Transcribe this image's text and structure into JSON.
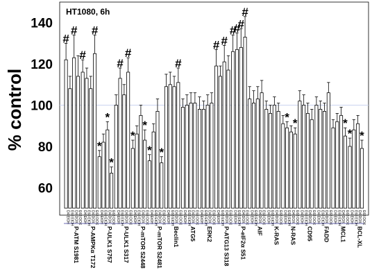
{
  "chart_data": {
    "type": "bar",
    "title": "",
    "annotation": "HT1080, 6h",
    "ylabel": "% control",
    "xlabel": "",
    "ylim": [
      50,
      150
    ],
    "yticks": [
      "60",
      "80",
      "100",
      "120",
      "140"
    ],
    "reference_line": 100,
    "grid": false,
    "legend": "none",
    "bar_color": "#ffffff",
    "edge_color": "#000000",
    "reference_color": "#c9d3ef",
    "condition_labels": [
      "D4\nEtOH",
      "E63\nEtOH",
      "D4\nDOX",
      "E63\nDOX"
    ],
    "groups": [
      {
        "name": "P-ATM S1981",
        "values": [
          122,
          108,
          123,
          114
        ],
        "errors": [
          8,
          6,
          11,
          10
        ],
        "marks": [
          "#",
          "",
          "#",
          ""
        ]
      },
      {
        "name": "P-AMPKα T172",
        "values": [
          116,
          113,
          108,
          125
        ],
        "errors": [
          6,
          5,
          6,
          9
        ],
        "marks": [
          "#",
          "",
          "",
          "#"
        ]
      },
      {
        "name": "P-ULK1 S757",
        "values": [
          75,
          82,
          88,
          67
        ],
        "errors": [
          3,
          4,
          4,
          3
        ],
        "marks": [
          "*",
          "",
          "*",
          "*"
        ]
      },
      {
        "name": "P-ULK1 S317",
        "values": [
          100,
          113,
          105,
          116
        ],
        "errors": [
          5,
          5,
          5,
          7
        ],
        "marks": [
          "",
          "#",
          "",
          "#"
        ]
      },
      {
        "name": "P-mTOR S2448",
        "values": [
          79,
          86,
          95,
          83
        ],
        "errors": [
          4,
          4,
          5,
          5
        ],
        "marks": [
          "*",
          "",
          "",
          "*"
        ]
      },
      {
        "name": "P-mTOR S2481",
        "values": [
          73,
          87,
          97,
          72
        ],
        "errors": [
          3,
          4,
          6,
          3
        ],
        "marks": [
          "*",
          "",
          "",
          "*"
        ]
      },
      {
        "name": "Beclin1",
        "values": [
          109,
          110,
          109,
          111
        ],
        "errors": [
          6,
          6,
          5,
          7
        ],
        "marks": [
          "",
          "",
          "",
          "#"
        ]
      },
      {
        "name": "ATG5",
        "values": [
          99,
          100,
          101,
          101
        ],
        "errors": [
          4,
          5,
          5,
          5
        ],
        "marks": [
          "",
          "",
          "",
          ""
        ]
      },
      {
        "name": "ERK2",
        "values": [
          98,
          98,
          100,
          101
        ],
        "errors": [
          6,
          4,
          5,
          5
        ],
        "marks": [
          "",
          "",
          "",
          ""
        ]
      },
      {
        "name": "P-ATG13 S318",
        "values": [
          119,
          114,
          121,
          117
        ],
        "errors": [
          8,
          5,
          8,
          7
        ],
        "marks": [
          "#",
          "",
          "#",
          ""
        ]
      },
      {
        "name": "P-eIF2α S51",
        "values": [
          126,
          127,
          128,
          133
        ],
        "errors": [
          8,
          8,
          9,
          10
        ],
        "marks": [
          "#",
          "#",
          "#",
          "#"
        ]
      },
      {
        "name": "AIF",
        "values": [
          103,
          101,
          103,
          106
        ],
        "errors": [
          6,
          6,
          6,
          6
        ],
        "marks": [
          "",
          "",
          "",
          ""
        ]
      },
      {
        "name": "K-RAS",
        "values": [
          98,
          96,
          100,
          97
        ],
        "errors": [
          4,
          4,
          4,
          4
        ],
        "marks": [
          "",
          "",
          "",
          ""
        ]
      },
      {
        "name": "N-RAS",
        "values": [
          91,
          89,
          87,
          86
        ],
        "errors": [
          4,
          3,
          3,
          3
        ],
        "marks": [
          "",
          "*",
          "",
          "*"
        ]
      },
      {
        "name": "CD95",
        "values": [
          102,
          100,
          96,
          93
        ],
        "errors": [
          5,
          5,
          5,
          5
        ],
        "marks": [
          "",
          "",
          "",
          ""
        ]
      },
      {
        "name": "FADD",
        "values": [
          100,
          98,
          97,
          106
        ],
        "errors": [
          4,
          4,
          4,
          5
        ],
        "marks": [
          "",
          "",
          "",
          ""
        ]
      },
      {
        "name": "MCL1",
        "values": [
          89,
          92,
          95,
          85
        ],
        "errors": [
          4,
          4,
          4,
          4
        ],
        "marks": [
          "",
          "",
          "",
          "*"
        ]
      },
      {
        "name": "BCL-XL",
        "values": [
          80,
          88,
          91,
          79
        ],
        "errors": [
          4,
          5,
          4,
          4
        ],
        "marks": [
          "*",
          "",
          "",
          "*"
        ]
      }
    ]
  }
}
